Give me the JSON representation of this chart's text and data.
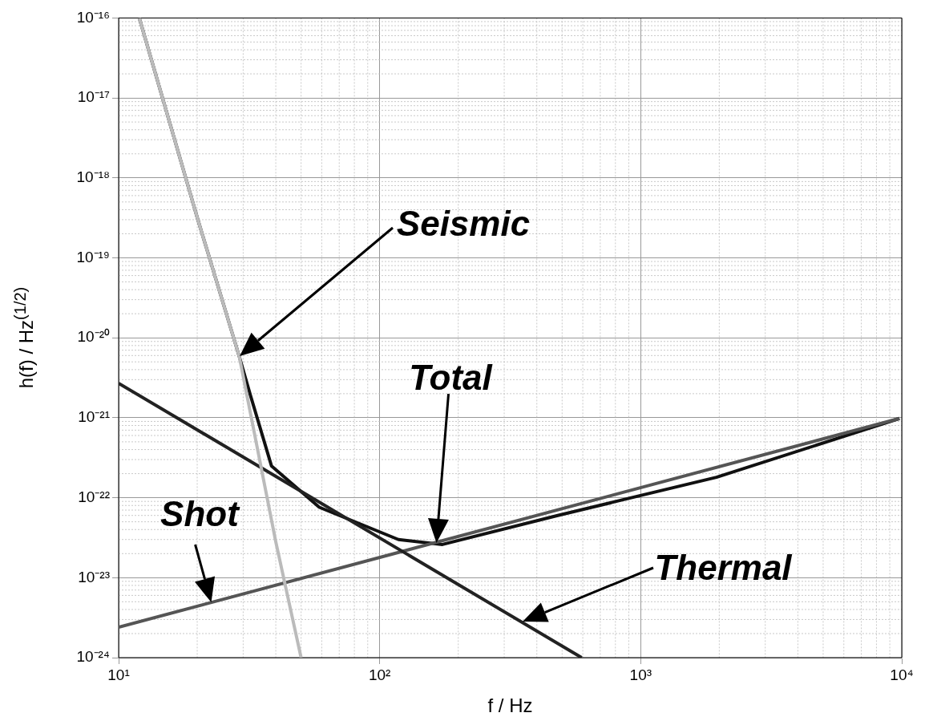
{
  "chart_data": {
    "type": "line",
    "xlabel": "f / Hz",
    "ylabel": "h(f) / Hz$^{(1/2)}$",
    "log": "xy",
    "grid": true,
    "legend": false,
    "marker": "none",
    "line_style": "solid",
    "xlim": [
      10,
      10000
    ],
    "xticks": [
      {
        "value": 10,
        "label": "10¹"
      },
      {
        "value": 100,
        "label": "10²"
      },
      {
        "value": 1000,
        "label": "10³"
      },
      {
        "value": 10000,
        "label": "10⁴"
      }
    ],
    "ylim": [
      1e-24,
      1e-16
    ],
    "yticks": [
      {
        "value": 1e-24,
        "label": "10⁻²⁴"
      },
      {
        "value": 1e-23,
        "label": "10⁻²³"
      },
      {
        "value": 1e-22,
        "label": "10⁻²²"
      },
      {
        "value": 1e-21,
        "label": "10⁻²¹"
      },
      {
        "value": 1e-20,
        "label": "10⁻²⁰"
      },
      {
        "value": 1e-19,
        "label": "10⁻¹⁹"
      },
      {
        "value": 1e-18,
        "label": "10⁻¹⁸"
      },
      {
        "value": 1e-17,
        "label": "10⁻¹⁷"
      },
      {
        "value": 1e-16,
        "label": "10⁻¹⁶"
      }
    ],
    "series": [
      {
        "color": "#bbbbbb",
        "x": [
          12,
          20,
          29,
          40,
          50
        ],
        "values": [
          1e-16,
          3.2e-19,
          5.8e-21,
          2.8e-23,
          1e-24
        ]
      },
      {
        "color": "#222222",
        "x": [
          10,
          594
        ],
        "values": [
          2.7e-21,
          1e-24
        ]
      },
      {
        "color": "#555555",
        "x": [
          10,
          9800
        ],
        "values": [
          2.4e-24,
          9.8e-22
        ]
      },
      {
        "color": "#111111",
        "x": [
          12,
          20,
          29,
          32,
          38.5,
          58.7,
          118,
          174,
          481,
          1950,
          9800
        ],
        "values": [
          1e-16,
          3.2e-19,
          5.8e-21,
          1.9e-21,
          2.5e-22,
          7.6e-23,
          3e-23,
          2.6e-23,
          6e-23,
          1.8e-22,
          9.8e-22
        ]
      }
    ],
    "annotations": [
      "Seismic",
      "Total",
      "Shot",
      "Thermal"
    ]
  }
}
